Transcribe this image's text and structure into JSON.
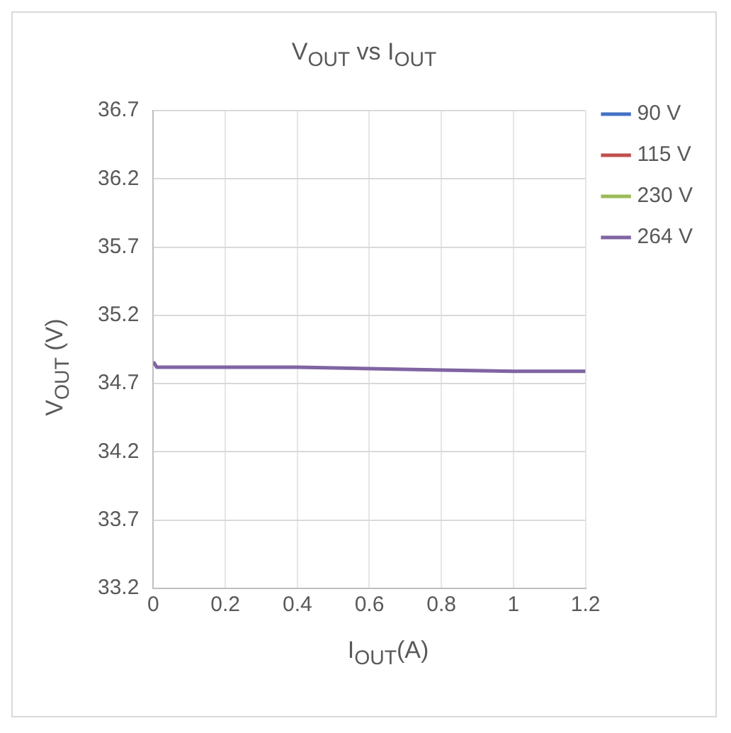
{
  "chart_data": {
    "type": "line",
    "title": "V$_{OUT}$ vs I$_{OUT}$",
    "xlabel": "I$_{OUT}$(A)",
    "ylabel": "V$_{OUT}$ (V)",
    "x": [
      0,
      0.01,
      0.1,
      0.2,
      0.4,
      0.6,
      0.8,
      1,
      1.2
    ],
    "series": [
      {
        "name": "90 V",
        "color": "#4472c4",
        "values": [
          null,
          null,
          null,
          null,
          null,
          null,
          null,
          null,
          null
        ]
      },
      {
        "name": "115 V",
        "color": "#c0504d",
        "values": [
          null,
          null,
          null,
          null,
          null,
          null,
          null,
          null,
          null
        ]
      },
      {
        "name": "230 V",
        "color": "#9bbb59",
        "values": [
          null,
          null,
          null,
          null,
          null,
          null,
          null,
          null,
          null
        ]
      },
      {
        "name": "264 V",
        "color": "#8064a2",
        "values": [
          34.86,
          34.82,
          34.82,
          34.82,
          34.82,
          34.81,
          34.8,
          34.79,
          34.79
        ]
      }
    ],
    "xlim": [
      0,
      1.2
    ],
    "xticks": [
      0,
      0.2,
      0.4,
      0.6,
      0.8,
      1,
      1.2
    ],
    "ylim": [
      33.2,
      36.7
    ],
    "yticks": [
      33.2,
      33.7,
      34.2,
      34.7,
      35.2,
      35.7,
      36.2,
      36.7
    ],
    "grid": true,
    "legend": "top right",
    "marker": "none",
    "line_style": "solid"
  }
}
